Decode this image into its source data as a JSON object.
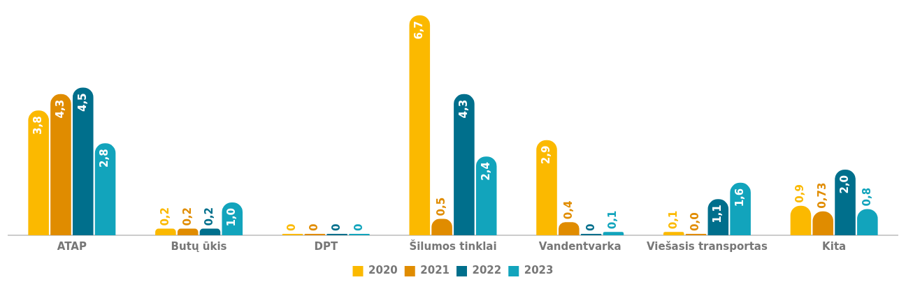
{
  "chart_data": {
    "type": "bar",
    "categories": [
      "ATAP",
      "Butų ūkis",
      "DPT",
      "Šilumos tinklai",
      "Vandentvarka",
      "Viešasis transportas",
      "Kita"
    ],
    "series": [
      {
        "name": "2020",
        "color": "#fbb900",
        "values": [
          3.8,
          0.2,
          0,
          6.7,
          2.9,
          0.1,
          0.9
        ],
        "value_labels": [
          "3,8",
          "0,2",
          "0",
          "6,7",
          "2,9",
          "0,1",
          "0,9"
        ]
      },
      {
        "name": "2021",
        "color": "#e08c00",
        "values": [
          4.3,
          0.2,
          0,
          0.5,
          0.4,
          0.0,
          0.73
        ],
        "value_labels": [
          "4,3",
          "0,2",
          "0",
          "0,5",
          "0,4",
          "0,0",
          "0,73"
        ]
      },
      {
        "name": "2022",
        "color": "#006f8c",
        "values": [
          4.5,
          0.2,
          0,
          4.3,
          0,
          1.1,
          2.0
        ],
        "value_labels": [
          "4,5",
          "0,2",
          "0",
          "4,3",
          "0",
          "1,1",
          "2,0"
        ]
      },
      {
        "name": "2023",
        "color": "#12a4bc",
        "values": [
          2.8,
          1.0,
          0,
          2.4,
          0.1,
          1.6,
          0.8
        ],
        "value_labels": [
          "2,8",
          "1,0",
          "0",
          "2,4",
          "0,1",
          "1,6",
          "0,8"
        ]
      }
    ],
    "legend": "bottom",
    "grid": false
  }
}
